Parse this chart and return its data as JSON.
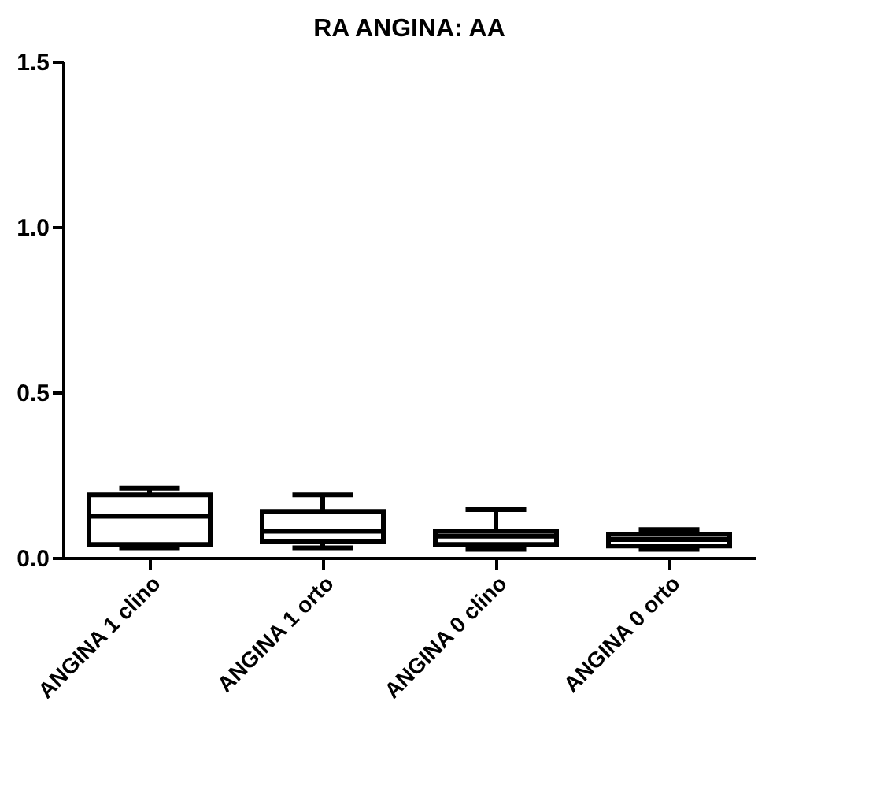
{
  "chart_data": {
    "type": "box",
    "title": "RA  ANGINA: AA",
    "categories": [
      "ANGINA 1 clino",
      "ANGINA 1 orto",
      "ANGINA 0 clino",
      "ANGINA 0 orto"
    ],
    "boxes": [
      {
        "low": 0.03,
        "q1": 0.04,
        "median": 0.125,
        "q3": 0.19,
        "high": 0.21
      },
      {
        "low": 0.03,
        "q1": 0.05,
        "median": 0.08,
        "q3": 0.14,
        "high": 0.19
      },
      {
        "low": 0.025,
        "q1": 0.04,
        "median": 0.065,
        "q3": 0.08,
        "high": 0.145
      },
      {
        "low": 0.025,
        "q1": 0.035,
        "median": 0.055,
        "q3": 0.07,
        "high": 0.085
      }
    ],
    "ylim": [
      0,
      1.5
    ],
    "yticks": [
      {
        "value": 0,
        "label": "0.0"
      },
      {
        "value": 0.5,
        "label": "0.5"
      },
      {
        "value": 1,
        "label": "1.0"
      },
      {
        "value": 1.5,
        "label": "1.5"
      }
    ],
    "grid": false
  }
}
